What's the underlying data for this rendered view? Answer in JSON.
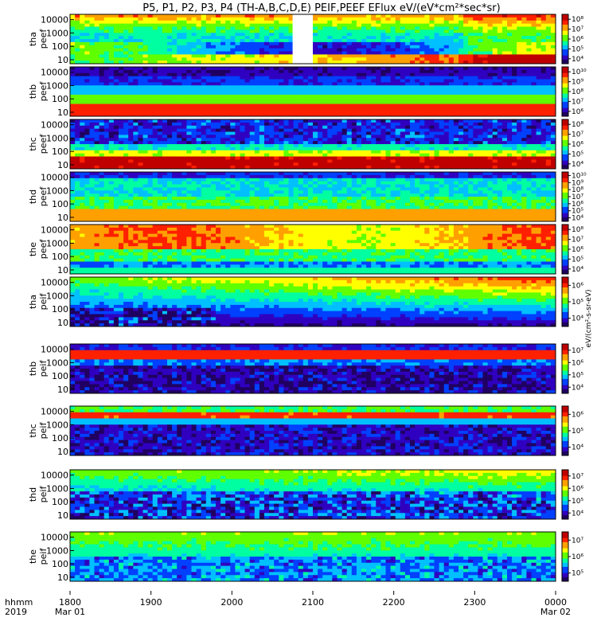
{
  "chart_data": {
    "type": "heatmap",
    "title": "P5, P1, P2, P3, P4 (TH-A,B,C,D,E) PEIF,PEEF EFlux eV/(eV*cm²*sec*sr)",
    "x_axis": {
      "row_label": "hhmm",
      "year_label": "2019",
      "ticks": [
        "1800",
        "1900",
        "2000",
        "2100",
        "2200",
        "2300",
        "0000"
      ],
      "date_labels": [
        {
          "at": "1800",
          "text": "Mar 01"
        },
        {
          "at": "0000",
          "text": "Mar 02"
        }
      ],
      "range": [
        "2019-03-01 18:00",
        "2019-03-02 00:00"
      ]
    },
    "y_ticks": [
      "10000",
      "1000",
      "100",
      "10"
    ],
    "y_range": [
      5,
      25000
    ],
    "y_scale": "log",
    "colorbar_units": "eV/(cm²-s-sr-eV)",
    "colormap": [
      "#200060",
      "#3000c0",
      "#0040ff",
      "#00c0ff",
      "#00ffa0",
      "#60ff00",
      "#ffff00",
      "#ffa000",
      "#ff2000",
      "#c00000"
    ],
    "panels": [
      {
        "id": "tha-peef",
        "probe": "tha",
        "product": "peef",
        "cb_ticks": [
          "10⁴",
          "10⁵",
          "10⁶",
          "10⁷",
          "10⁸"
        ],
        "data_gap": [
          "20:45",
          "21:00"
        ]
      },
      {
        "id": "thb-peef",
        "probe": "thb",
        "product": "peef",
        "cb_ticks": [
          "10⁶",
          "10⁷",
          "10⁸",
          "10⁹",
          "10¹⁰"
        ]
      },
      {
        "id": "thc-peef",
        "probe": "thc",
        "product": "peef",
        "cb_ticks": [
          "10⁴",
          "10⁵",
          "10⁶",
          "10⁷",
          "10⁸"
        ]
      },
      {
        "id": "thd-peef",
        "probe": "thd",
        "product": "peef",
        "cb_ticks": [
          "10⁴",
          "10⁵",
          "10⁶",
          "10⁷",
          "10⁸",
          "10⁹",
          "10¹⁰"
        ]
      },
      {
        "id": "the-peef",
        "probe": "the",
        "product": "peef",
        "cb_ticks": [
          "10⁴",
          "10⁵",
          "10⁶",
          "10⁷",
          "10⁸"
        ]
      },
      {
        "id": "tha-peif",
        "probe": "tha",
        "product": "peif",
        "cb_ticks": [
          "10⁴",
          "10⁵",
          "10⁶"
        ]
      },
      {
        "id": "thb-peif",
        "probe": "thb",
        "product": "peif",
        "cb_ticks": [
          "10⁴",
          "10⁵",
          "10⁶",
          "10⁷"
        ]
      },
      {
        "id": "thc-peif",
        "probe": "thc",
        "product": "peif",
        "cb_ticks": [
          "10⁴",
          "10⁵",
          "10⁶"
        ]
      },
      {
        "id": "thd-peif",
        "probe": "thd",
        "product": "peif",
        "cb_ticks": [
          "10⁴",
          "10⁵",
          "10⁶",
          "10⁷"
        ]
      },
      {
        "id": "the-peif",
        "probe": "the",
        "product": "peif",
        "cb_ticks": [
          "10⁵",
          "10⁶",
          "10⁷"
        ]
      }
    ]
  }
}
